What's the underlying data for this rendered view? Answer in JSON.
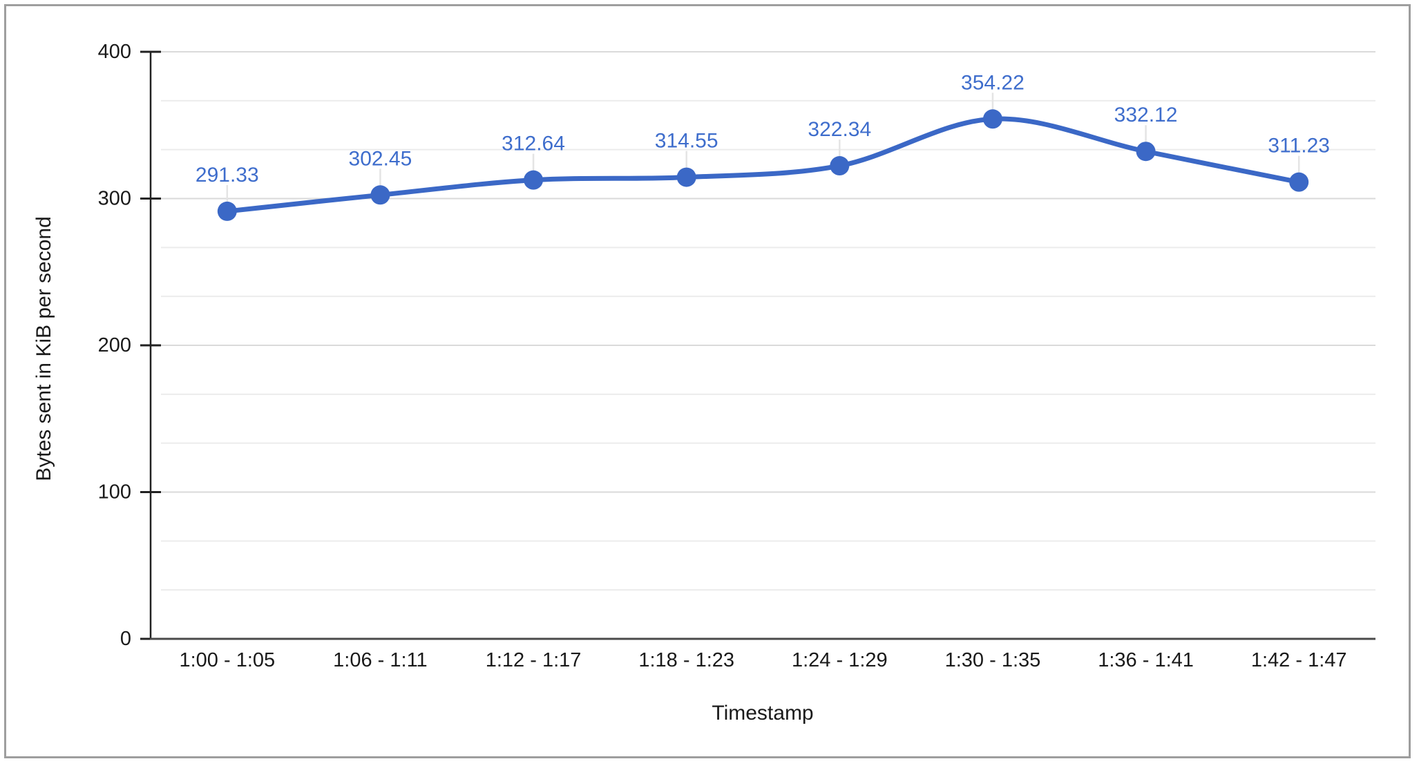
{
  "window": {
    "background": "#ffffff",
    "border_color": "#9e9e9e"
  },
  "chart_data": {
    "type": "line",
    "title": "",
    "xlabel": "Timestamp",
    "ylabel": "Bytes sent in KiB per second",
    "categories": [
      "1:00 - 1:05",
      "1:06 - 1:11",
      "1:12 - 1:17",
      "1:18 - 1:23",
      "1:24 - 1:29",
      "1:30 - 1:35",
      "1:36 - 1:41",
      "1:42 - 1:47"
    ],
    "series": [
      {
        "name": "Bytes sent in KiB per second",
        "values": [
          291.33,
          302.45,
          312.64,
          314.55,
          322.34,
          354.22,
          332.12,
          311.23
        ],
        "point_labels": [
          "291.33",
          "302.45",
          "312.64",
          "314.55",
          "322.34",
          "354.22",
          "332.12",
          "311.23"
        ],
        "color": "#3b68c6"
      }
    ],
    "ylim": [
      0,
      400
    ],
    "y_tick_labels": [
      "0",
      "100",
      "200",
      "300",
      "400"
    ],
    "y_major_step": 100,
    "y_minor_divisions_per_major": 3,
    "grid": true,
    "legend_position": "none",
    "smooth_line": true,
    "markers": "circle",
    "data_labels_shown": true,
    "colors": {
      "series_line": "#3b68c6",
      "data_label_text": "#3e6dcc",
      "gridline_major": "#dadada",
      "gridline_minor": "#ececec",
      "y_axis_line": "#212121",
      "x_axis_line": "#4a4a4a",
      "tick_text": "#1a1a1a",
      "leader_line": "#e4e4e4"
    }
  }
}
